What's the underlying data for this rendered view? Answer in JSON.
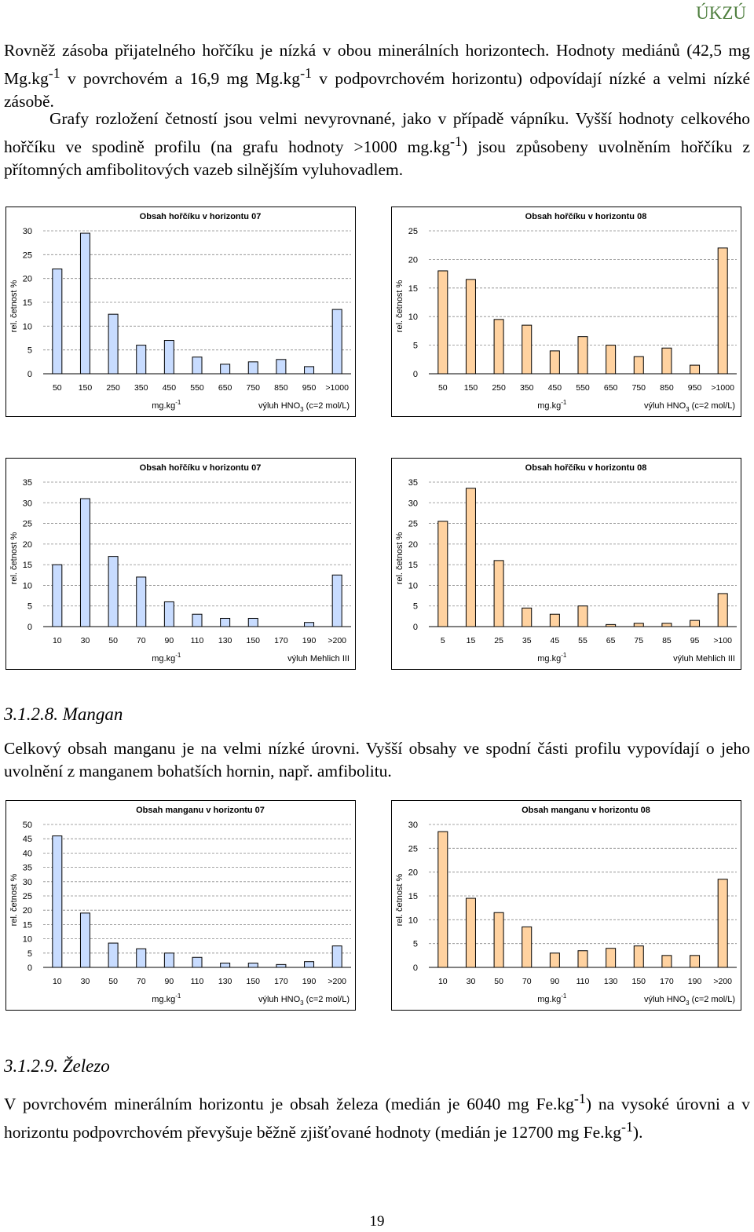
{
  "header": {
    "label": "ÚKZÚ"
  },
  "text": {
    "p1_before": "Rovněž zásoba přijatelného hořčíku je nízká v obou minerálních horizontech. Hodnoty mediánů (42,5 mg Mg.kg",
    "p1_mid": " v povrchovém a 16,9 mg Mg.kg",
    "p1_after": " v podpovrchovém horizontu) odpovídají nízké a velmi nízké zásobě.",
    "p2_before": "Grafy rozložení četností jsou velmi nevyrovnané, jako v případě vápníku. Vyšší hodnoty celkového hořčíku ve spodině profilu (na grafu hodnoty >1000 mg.kg",
    "p2_after": ") jsou způsobeny uvolněním hořčíku z přítomných amfibolitových vazeb silnějším vyluhovadlem.",
    "heading_mn": "3.1.2.8. Mangan",
    "p3": "Celkový obsah manganu je na velmi nízké úrovni. Vyšší obsahy ve spodní části profilu vypovídají o jeho uvolnění z manganem bohatších hornin, např. amfibolitu.",
    "heading_fe": "3.1.2.9. Železo",
    "p4_before": "V povrchovém minerálním horizontu je obsah železa (medián je 6040 mg Fe.kg",
    "p4_mid": ") na vysoké úrovni a v horizontu podpovrchovém převyšuje běžně zjišťované hodnoty (medián je 12700 mg Fe.kg",
    "p4_after": ").",
    "sup": "-1",
    "page_number": "19"
  },
  "colors": {
    "blue": "#c8dcff",
    "orange": "#ffd2a0"
  },
  "chart_data": [
    {
      "id": "mg-total-07",
      "type": "bar",
      "title": "Obsah hořčíku v horizontu 07",
      "categories": [
        "50",
        "150",
        "250",
        "350",
        "450",
        "550",
        "650",
        "750",
        "850",
        "950",
        ">1000"
      ],
      "values": [
        22,
        29.5,
        12.5,
        6,
        7,
        3.5,
        2,
        2.5,
        3,
        1.5,
        13.5
      ],
      "ylim": [
        0,
        30
      ],
      "yticks": [
        0,
        5,
        10,
        15,
        20,
        25,
        30
      ],
      "ylabel": "rel. četnost %",
      "xlabel_unit": "mg.kg",
      "xlabel_unit_sup": "-1",
      "xlabel_method": "výluh HNO",
      "xlabel_method_sub": "3",
      "xlabel_method_end": " (c=2 mol/L)",
      "color": "blue"
    },
    {
      "id": "mg-total-08",
      "type": "bar",
      "title": "Obsah hořčíku v horizontu 08",
      "categories": [
        "50",
        "150",
        "250",
        "350",
        "450",
        "550",
        "650",
        "750",
        "850",
        "950",
        ">1000"
      ],
      "values": [
        18,
        16.5,
        9.5,
        8.5,
        4,
        6.5,
        5,
        3,
        4.5,
        1.5,
        22
      ],
      "ylim": [
        0,
        25
      ],
      "yticks": [
        0,
        5,
        10,
        15,
        20,
        25
      ],
      "ylabel": "rel. četnost %",
      "xlabel_unit": "mg.kg",
      "xlabel_unit_sup": "-1",
      "xlabel_method": "výluh HNO",
      "xlabel_method_sub": "3",
      "xlabel_method_end": " (c=2 mol/L)",
      "color": "orange"
    },
    {
      "id": "mg-mehlich-07",
      "type": "bar",
      "title": "Obsah hořčíku v horizontu 07",
      "categories": [
        "10",
        "30",
        "50",
        "70",
        "90",
        "110",
        "130",
        "150",
        "170",
        "190",
        ">200"
      ],
      "values": [
        15,
        31,
        17,
        12,
        6,
        3,
        2,
        2,
        0,
        1,
        12.5
      ],
      "ylim": [
        0,
        35
      ],
      "yticks": [
        0,
        5,
        10,
        15,
        20,
        25,
        30,
        35
      ],
      "ylabel": "rel. četnost %",
      "xlabel_unit": "mg.kg",
      "xlabel_unit_sup": "-1",
      "xlabel_method": "výluh Mehlich III",
      "xlabel_method_sub": "",
      "xlabel_method_end": "",
      "color": "blue"
    },
    {
      "id": "mg-mehlich-08",
      "type": "bar",
      "title": "Obsah hořčíku v horizontu 08",
      "categories": [
        "5",
        "15",
        "25",
        "35",
        "45",
        "55",
        "65",
        "75",
        "85",
        "95",
        ">100"
      ],
      "values": [
        25.5,
        33.5,
        16,
        4.5,
        3,
        5,
        0.5,
        0.8,
        0.8,
        1.5,
        8
      ],
      "ylim": [
        0,
        35
      ],
      "yticks": [
        0,
        5,
        10,
        15,
        20,
        25,
        30,
        35
      ],
      "ylabel": "rel. četnost %",
      "xlabel_unit": "mg.kg",
      "xlabel_unit_sup": "-1",
      "xlabel_method": "výluh Mehlich III",
      "xlabel_method_sub": "",
      "xlabel_method_end": "",
      "color": "orange"
    },
    {
      "id": "mn-07",
      "type": "bar",
      "title": "Obsah manganu v horizontu 07",
      "categories": [
        "10",
        "30",
        "50",
        "70",
        "90",
        "110",
        "130",
        "150",
        "170",
        "190",
        ">200"
      ],
      "values": [
        46,
        19,
        8.5,
        6.5,
        5,
        3.5,
        1.5,
        1.5,
        1,
        2,
        7.5
      ],
      "ylim": [
        0,
        50
      ],
      "yticks": [
        0,
        5,
        10,
        15,
        20,
        25,
        30,
        35,
        40,
        45,
        50
      ],
      "ylabel": "rel. četnost %",
      "xlabel_unit": "mg.kg",
      "xlabel_unit_sup": "-1",
      "xlabel_method": "výluh HNO",
      "xlabel_method_sub": "3",
      "xlabel_method_end": " (c=2 mol/L)",
      "color": "blue"
    },
    {
      "id": "mn-08",
      "type": "bar",
      "title": "Obsah manganu v horizontu 08",
      "categories": [
        "10",
        "30",
        "50",
        "70",
        "90",
        "110",
        "130",
        "150",
        "170",
        "190",
        ">200"
      ],
      "values": [
        28.5,
        14.5,
        11.5,
        8.5,
        3,
        3.5,
        4,
        4.5,
        2.5,
        2.5,
        18.5
      ],
      "ylim": [
        0,
        30
      ],
      "yticks": [
        0,
        5,
        10,
        15,
        20,
        25,
        30
      ],
      "ylabel": "rel. četnost %",
      "xlabel_unit": "mg.kg",
      "xlabel_unit_sup": "-1",
      "xlabel_method": "výluh HNO",
      "xlabel_method_sub": "3",
      "xlabel_method_end": " (c=2 mol/L)",
      "color": "orange"
    }
  ]
}
